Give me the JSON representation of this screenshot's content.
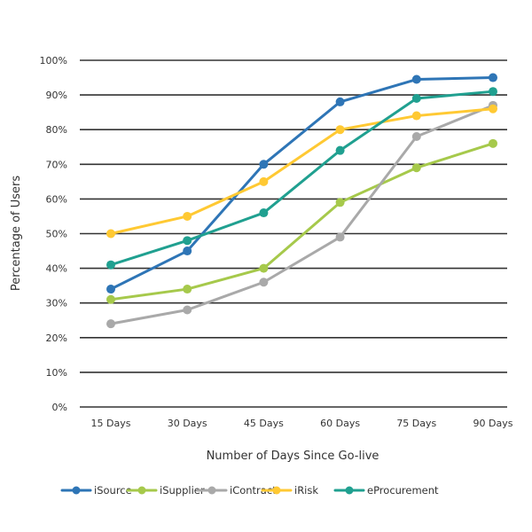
{
  "chart_data": {
    "type": "line",
    "title": "",
    "xlabel": "Number of Days Since Go-live",
    "ylabel": "Percentage of Users",
    "categories": [
      "15 Days",
      "30 Days",
      "45 Days",
      "60 Days",
      "75 Days",
      "90 Days"
    ],
    "ylim": [
      0,
      100
    ],
    "yticks": [
      0,
      10,
      20,
      30,
      40,
      50,
      60,
      70,
      80,
      90,
      100
    ],
    "ytick_labels": [
      "0%",
      "10%",
      "20%",
      "30%",
      "40%",
      "50%",
      "60%",
      "70%",
      "80%",
      "90%",
      "100%"
    ],
    "grid": true,
    "legend_position": "bottom",
    "series": [
      {
        "name": "iSource",
        "color": "#2E75B6",
        "values": [
          34,
          45,
          70,
          88,
          94.5,
          95
        ]
      },
      {
        "name": "iSupplier",
        "color": "#A6C94B",
        "values": [
          31,
          34,
          40,
          59,
          69,
          76
        ]
      },
      {
        "name": "iContract",
        "color": "#A9A9A9",
        "values": [
          24,
          28,
          36,
          49,
          78,
          87
        ]
      },
      {
        "name": "iRisk",
        "color": "#FFC933",
        "values": [
          50,
          55,
          65,
          80,
          84,
          86
        ]
      },
      {
        "name": "eProcurement",
        "color": "#20A090",
        "values": [
          41,
          48,
          56,
          74,
          89,
          91
        ]
      }
    ]
  }
}
